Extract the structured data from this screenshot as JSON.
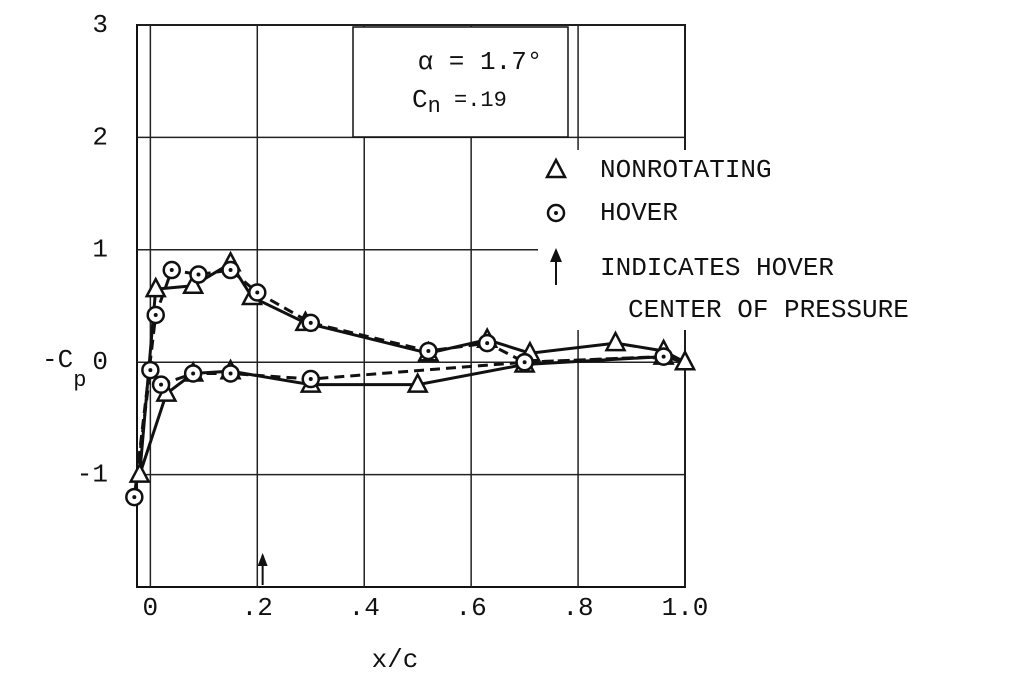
{
  "chart_data": {
    "type": "line",
    "xlabel": "x/c",
    "ylabel": {
      "text": "-C",
      "subscript": "p"
    },
    "annotation_alpha": "α = 1.7°",
    "annotation_cn": {
      "text": "C",
      "subscript": "n",
      "rest": " =.19"
    },
    "legend_note": [
      "INDICATES HOVER",
      "CENTER OF PRESSURE"
    ],
    "cp_arrow_x": 0.21,
    "xlim": [
      -0.025,
      1.0
    ],
    "ylim": [
      -2,
      3
    ],
    "xticks": [
      0,
      {
        "value": 0.2,
        "label": ".2"
      },
      {
        "value": 0.4,
        "label": ".4"
      },
      {
        "value": 0.6,
        "label": ".6"
      },
      {
        "value": 0.8,
        "label": ".8"
      },
      {
        "value": 1.0,
        "label": "1.0"
      }
    ],
    "yticks": [
      -1,
      0,
      1,
      2,
      3
    ],
    "grid": true,
    "series": [
      {
        "name": "NONROTATING",
        "color": "#111",
        "marker": "triangle",
        "dash": false,
        "x": [
          1.0,
          0.96,
          0.7,
          0.5,
          0.3,
          0.15,
          0.08,
          0.03,
          -0.02,
          0.01,
          0.08,
          0.15,
          0.19,
          0.29,
          0.52,
          0.63,
          0.71,
          0.87,
          0.96,
          1.0
        ],
        "values": [
          0,
          0.05,
          -0.02,
          -0.2,
          -0.2,
          -0.08,
          -0.1,
          -0.28,
          -1.0,
          0.65,
          0.68,
          0.88,
          0.58,
          0.35,
          0.08,
          0.2,
          0.08,
          0.17,
          0.1,
          0
        ]
      },
      {
        "name": "HOVER",
        "color": "#111",
        "marker": "circle",
        "dash": true,
        "x": [
          0.96,
          0.7,
          0.3,
          0.15,
          0.08,
          0.02,
          0.0,
          -0.03,
          0.01,
          0.04,
          0.09,
          0.15,
          0.2,
          0.3,
          0.52,
          0.63,
          0.7,
          0.96
        ],
        "values": [
          0.05,
          0.0,
          -0.15,
          -0.1,
          -0.1,
          -0.2,
          -0.07,
          -1.2,
          0.42,
          0.82,
          0.78,
          0.82,
          0.62,
          0.35,
          0.1,
          0.17,
          0.0,
          0.05
        ]
      }
    ]
  }
}
